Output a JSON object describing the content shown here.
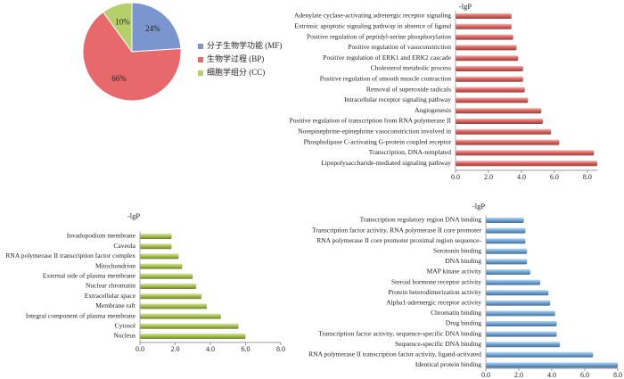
{
  "chart_data": [
    {
      "type": "pie",
      "categories": [
        "分子生物学功能 (MF)",
        "生物学过程 (BP)",
        "细胞学组分 (CC)"
      ],
      "values": [
        24,
        66,
        10
      ],
      "value_labels": [
        "24%",
        "66%",
        "10%"
      ],
      "colors": [
        "#7b96cf",
        "#e8696b",
        "#b5cf6b"
      ]
    },
    {
      "type": "bar",
      "orientation": "horizontal",
      "axis_label": "-lgP",
      "color": "#e0625e",
      "categories": [
        "Adenylate cyclase-activating adrenergic receptor signaling",
        "Extrinsic apoptotic signaling pathway in absence of ligand",
        "Positive regulation of peptidyl-serine phosphorylation",
        "Positive regulation of vasoconstriction",
        "Positive regulation of ERK1 and ERK2 cascade",
        "Cholesterol metabolic process",
        "Positive regulation of smooth muscle contraction",
        "Removal of superoxide radicals",
        "Intracellular receptor signaling pathway",
        "Angiogenesis",
        "Positive regulation of transcription from RNA polymerase II",
        "Norepinephrine-epinephrine vasoconstriction involved in",
        "Phospholipase C-activating G-protein coupled receptor",
        "Transcription, DNA-templated",
        "Lipopolysaccharide-mediated signaling pathway"
      ],
      "values": [
        3.4,
        3.4,
        3.5,
        3.7,
        3.8,
        4.1,
        4.1,
        4.2,
        4.4,
        5.2,
        5.3,
        5.8,
        6.3,
        8.4,
        8.6
      ],
      "xlim": [
        0,
        8.6
      ],
      "xticks": [
        {
          "value": 0,
          "label": "0.0"
        },
        {
          "value": 2,
          "label": "2.0"
        },
        {
          "value": 4,
          "label": "4.0"
        },
        {
          "value": 6,
          "label": "6.0"
        },
        {
          "value": 8,
          "label": "8.0"
        }
      ]
    },
    {
      "type": "bar",
      "orientation": "horizontal",
      "axis_label": "-lgP",
      "color": "#a9c44c",
      "categories": [
        "Invadopodium membrane",
        "Caveola",
        "RNA polymerase II transcription factor complex",
        "Mitochondrion",
        "External side of plasma membrane",
        "Nuclear chromatin",
        "Extracellular space",
        "Membrane raft",
        "Integral component of plasma membrane",
        "Cytosol",
        "Nucleus"
      ],
      "values": [
        1.8,
        1.8,
        2.2,
        2.4,
        3.0,
        3.2,
        3.5,
        3.8,
        4.6,
        5.6,
        6.0
      ],
      "xlim": [
        0,
        8
      ],
      "xticks": [
        {
          "value": 0,
          "label": "0.0"
        },
        {
          "value": 2,
          "label": "2.0"
        },
        {
          "value": 4,
          "label": "4.0"
        },
        {
          "value": 6,
          "label": "6.0"
        },
        {
          "value": 8,
          "label": "8.0"
        }
      ]
    },
    {
      "type": "bar",
      "orientation": "horizontal",
      "axis_label": "-lgP",
      "color": "#6fa8dc",
      "categories": [
        "Transcription regulatory region DNA binding",
        "Transcription factor activity, RNA polymerase II core promoter",
        "RNA polymerase II core promoter proximal region sequence-",
        "Serotonin binding",
        "DNA binding",
        "MAP kinase activity",
        "Steroid hormone receptor activity",
        "Protein heterodimerization activity",
        "Alpha1-adrenergic receptor activity",
        "Chromatin binding",
        "Drug binding",
        "Transcription factor activity, sequence-specific DNA binding",
        "Sequence-specific DNA binding",
        "RNA polymerase II transcription factor activity, ligand-activated",
        "Identical protein binding"
      ],
      "values": [
        2.3,
        2.4,
        2.4,
        2.5,
        2.5,
        2.7,
        3.3,
        3.8,
        3.9,
        4.2,
        4.3,
        4.3,
        4.5,
        6.5,
        8.0
      ],
      "xlim": [
        0,
        8
      ],
      "xticks": [
        {
          "value": 0,
          "label": "0.0"
        },
        {
          "value": 2,
          "label": "2.0"
        },
        {
          "value": 4,
          "label": "4.0"
        },
        {
          "value": 6,
          "label": "6.0"
        },
        {
          "value": 8,
          "label": "8.0"
        }
      ]
    }
  ]
}
